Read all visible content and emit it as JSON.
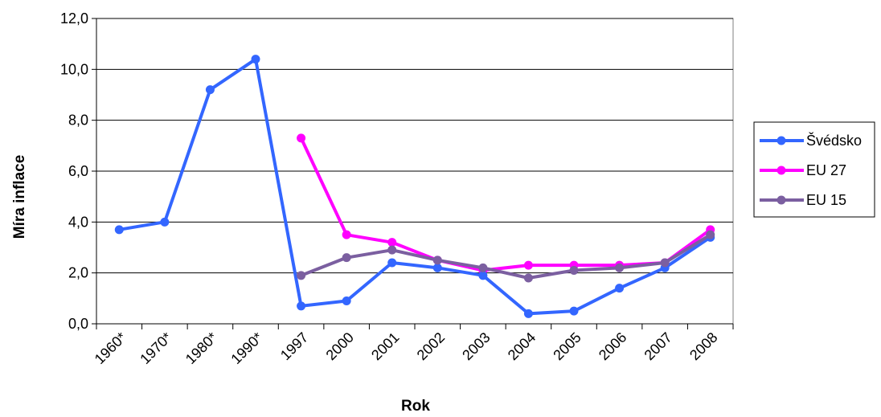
{
  "chart_data": {
    "type": "line",
    "title": "",
    "xlabel": "Rok",
    "ylabel": "Míra inflace",
    "categories": [
      "1960*",
      "1970*",
      "1980*",
      "1990*",
      "1997",
      "2000",
      "2001",
      "2002",
      "2003",
      "2004",
      "2005",
      "2006",
      "2007",
      "2008"
    ],
    "y_tick_labels": [
      "0,0",
      "2,0",
      "4,0",
      "6,0",
      "8,0",
      "10,0",
      "12,0"
    ],
    "ylim": [
      0,
      12
    ],
    "grid": "horizontal",
    "legend_position": "right",
    "series": [
      {
        "name": "Švédsko",
        "color": "#3366FF",
        "values": [
          3.7,
          4.0,
          9.2,
          10.4,
          0.7,
          0.9,
          2.4,
          2.2,
          1.9,
          0.4,
          0.5,
          1.4,
          2.2,
          3.4
        ]
      },
      {
        "name": "EU 27",
        "color": "#FF00FF",
        "values": [
          null,
          null,
          null,
          null,
          7.3,
          3.5,
          3.2,
          2.5,
          2.1,
          2.3,
          2.3,
          2.3,
          2.4,
          3.7
        ]
      },
      {
        "name": "EU 15",
        "color": "#7B5FA0",
        "values": [
          null,
          null,
          null,
          null,
          1.9,
          2.6,
          2.9,
          2.5,
          2.2,
          1.8,
          2.1,
          2.2,
          2.4,
          3.5
        ]
      }
    ]
  }
}
